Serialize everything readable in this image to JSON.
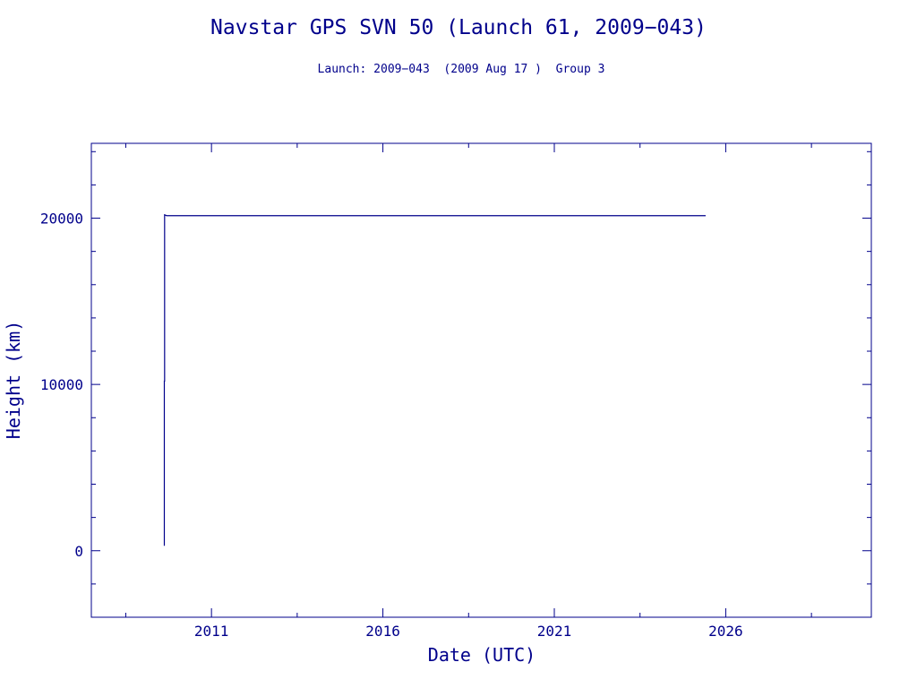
{
  "chart_data": {
    "type": "line",
    "title": "Navstar GPS SVN 50 (Launch 61, 2009−043)",
    "subtitle": "Launch: 2009−043  (2009 Aug 17 )  Group 3",
    "xlabel": "Date (UTC)",
    "ylabel": "Height (km)",
    "xlim": [
      "2007-07-01",
      "2030-04-01"
    ],
    "ylim": [
      -4000,
      24500
    ],
    "x_ticks": [
      "2011",
      "2016",
      "2021",
      "2026"
    ],
    "y_ticks": [
      0,
      10000,
      20000
    ],
    "grid": false,
    "series": [
      {
        "x": [
          "2009-08-17",
          "2009-08-17",
          "2009-08-20",
          "2009-08-20",
          "2009-09-10",
          "2025-06-01"
        ],
        "y": [
          300,
          10200,
          10200,
          20200,
          20150,
          20150
        ]
      }
    ]
  },
  "colors": {
    "ink": "#00008b",
    "background": "#ffffff"
  }
}
